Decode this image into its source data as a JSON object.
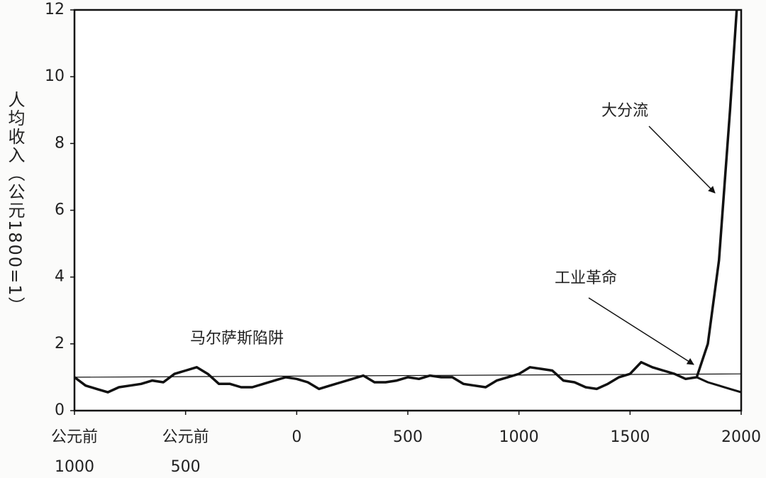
{
  "chart_data": {
    "type": "line",
    "y_label": "人均收入（公元1800=1）",
    "annotations": [
      "马尔萨斯陷阱",
      "工业革命",
      "大分流"
    ],
    "xlim": [
      -1000,
      2000
    ],
    "ylim": [
      0,
      12
    ],
    "xticks": [
      {
        "value": -1000,
        "label": "公元前\n1000"
      },
      {
        "value": -500,
        "label": "公元前\n500"
      },
      0,
      500,
      1000,
      1500,
      2000
    ],
    "yticks": [
      0,
      2,
      4,
      6,
      8,
      10,
      12
    ],
    "series": [
      {
        "color": "#111111",
        "width": 3.5,
        "x": [
          -1000,
          -950,
          -900,
          -850,
          -800,
          -750,
          -700,
          -650,
          -600,
          -550,
          -500,
          -450,
          -400,
          -350,
          -300,
          -250,
          -200,
          -150,
          -100,
          -50,
          0,
          50,
          100,
          150,
          200,
          250,
          300,
          350,
          400,
          450,
          500,
          550,
          600,
          650,
          700,
          750,
          800,
          850,
          900,
          950,
          1000,
          1050,
          1100,
          1150,
          1200,
          1250,
          1300,
          1350,
          1400,
          1450,
          1500,
          1550,
          1600,
          1650,
          1700,
          1750,
          1800,
          1850,
          1900,
          1950,
          1980
        ],
        "values": [
          1.0,
          0.75,
          0.65,
          0.55,
          0.7,
          0.75,
          0.8,
          0.9,
          0.85,
          1.1,
          1.2,
          1.3,
          1.1,
          0.8,
          0.8,
          0.7,
          0.7,
          0.8,
          0.9,
          1.0,
          0.95,
          0.85,
          0.65,
          0.75,
          0.85,
          0.95,
          1.05,
          0.85,
          0.85,
          0.9,
          1.0,
          0.95,
          1.05,
          1.0,
          1.0,
          0.8,
          0.75,
          0.7,
          0.9,
          1.0,
          1.1,
          1.3,
          1.25,
          1.2,
          0.9,
          0.85,
          0.7,
          0.65,
          0.8,
          1.0,
          1.1,
          1.45,
          1.3,
          1.2,
          1.1,
          0.95,
          1.0,
          2.0,
          4.5,
          9.0,
          12
        ]
      },
      {
        "color": "#111111",
        "width": 3,
        "x": [
          1800,
          1850,
          1900,
          1950,
          2000
        ],
        "values": [
          1.0,
          0.85,
          0.75,
          0.65,
          0.55
        ]
      },
      {
        "color": "#111111",
        "width": 1.2,
        "x": [
          -1000,
          2000
        ],
        "values": [
          1.0,
          1.1
        ]
      }
    ]
  }
}
